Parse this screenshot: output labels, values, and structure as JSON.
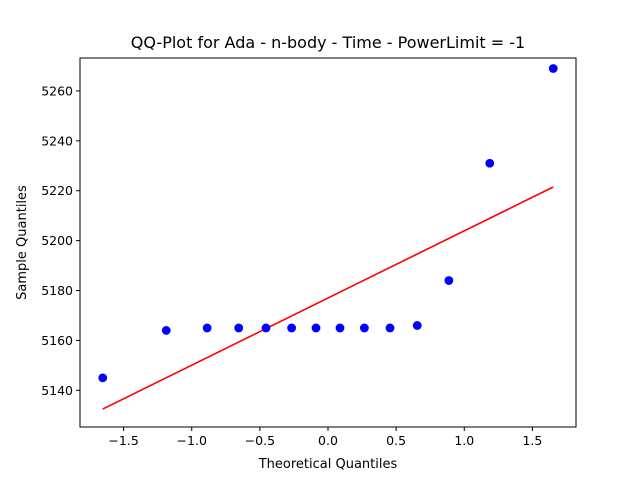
{
  "chart_data": {
    "type": "scatter",
    "title": "QQ-Plot for Ada - n-body - Time - PowerLimit = -1",
    "xlabel": "Theoretical Quantiles",
    "ylabel": "Sample Quantiles",
    "xlim": [
      -1.82,
      1.82
    ],
    "ylim": [
      5125.3,
      5273.2
    ],
    "xticks": [
      -1.5,
      -1.0,
      -0.5,
      0.0,
      0.5,
      1.0,
      1.5
    ],
    "xtick_labels": [
      "−1.5",
      "−1.0",
      "−0.5",
      "0.0",
      "0.5",
      "1.0",
      "1.5"
    ],
    "yticks": [
      5140,
      5160,
      5180,
      5200,
      5220,
      5240,
      5260
    ],
    "ytick_labels": [
      "5140",
      "5160",
      "5180",
      "5200",
      "5220",
      "5240",
      "5260"
    ],
    "grid": false,
    "series": [
      {
        "kind": "points",
        "color": "#0000ff",
        "x": [
          -1.653,
          -1.187,
          -0.887,
          -0.655,
          -0.455,
          -0.267,
          -0.088,
          0.088,
          0.267,
          0.455,
          0.655,
          0.887,
          1.187,
          1.653
        ],
        "y": [
          5145,
          5164,
          5165,
          5165,
          5165,
          5165,
          5165,
          5165,
          5165,
          5165,
          5166,
          5184,
          5231,
          5269
        ]
      },
      {
        "kind": "line",
        "color": "#ff0000",
        "x": [
          -1.653,
          1.653
        ],
        "y": [
          5132.5,
          5221.5
        ]
      }
    ]
  }
}
